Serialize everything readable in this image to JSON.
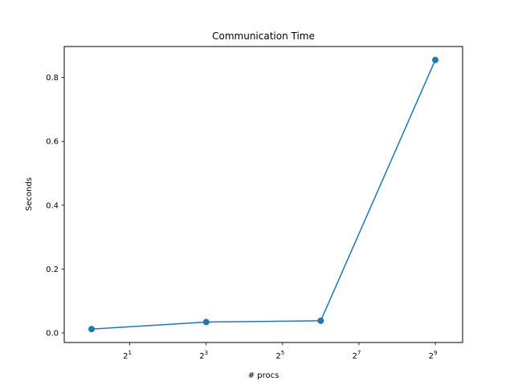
{
  "chart_data": {
    "type": "line",
    "title": "Communication Time",
    "xlabel": "# procs",
    "ylabel": "Seconds",
    "x_scale": "log2",
    "x": [
      1,
      8,
      64,
      512
    ],
    "series": [
      {
        "values": [
          0.012,
          0.034,
          0.038,
          0.855
        ],
        "color": "#1f77b4",
        "marker": "circle"
      }
    ],
    "xlim": [
      0.609,
      840.0
    ],
    "ylim": [
      -0.03,
      0.897
    ],
    "x_ticks": [
      {
        "value": 2,
        "base": "2",
        "exp": "1"
      },
      {
        "value": 8,
        "base": "2",
        "exp": "3"
      },
      {
        "value": 32,
        "base": "2",
        "exp": "5"
      },
      {
        "value": 128,
        "base": "2",
        "exp": "7"
      },
      {
        "value": 512,
        "base": "2",
        "exp": "9"
      }
    ],
    "y_ticks": [
      {
        "value": 0.0,
        "label": "0.0"
      },
      {
        "value": 0.2,
        "label": "0.2"
      },
      {
        "value": 0.4,
        "label": "0.4"
      },
      {
        "value": 0.6,
        "label": "0.6"
      },
      {
        "value": 0.8,
        "label": "0.8"
      }
    ],
    "grid": false,
    "legend": "none"
  }
}
